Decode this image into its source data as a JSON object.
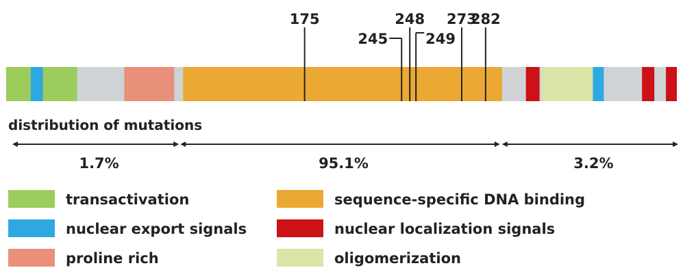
{
  "colors": {
    "background": "#cfd3d6",
    "transactivation": "#9ccc5c",
    "nuclear_export": "#2ea8e0",
    "proline_rich": "#e8907a",
    "dna_binding": "#eba833",
    "nuclear_localization": "#cc1117",
    "oligomerization": "#d9e6a8",
    "ink": "#222222"
  },
  "protein": {
    "domains": [
      {
        "type": "transactivation",
        "start": 0.009,
        "end": 0.045
      },
      {
        "type": "nuclear_export",
        "start": 0.045,
        "end": 0.063
      },
      {
        "type": "transactivation",
        "start": 0.063,
        "end": 0.113
      },
      {
        "type": "proline_rich",
        "start": 0.182,
        "end": 0.255
      },
      {
        "type": "dna_binding",
        "start": 0.268,
        "end": 0.735
      },
      {
        "type": "nuclear_localization",
        "start": 0.77,
        "end": 0.79
      },
      {
        "type": "oligomerization",
        "start": 0.793,
        "end": 0.868
      },
      {
        "type": "nuclear_export",
        "start": 0.868,
        "end": 0.884
      },
      {
        "type": "nuclear_localization",
        "start": 0.94,
        "end": 0.958
      },
      {
        "type": "nuclear_localization",
        "start": 0.975,
        "end": 0.991
      }
    ]
  },
  "mutations": [
    {
      "label": "175",
      "position": 0.446
    },
    {
      "label": "245",
      "position": 0.588
    },
    {
      "label": "248",
      "position": 0.6
    },
    {
      "label": "249",
      "position": 0.609
    },
    {
      "label": "273",
      "position": 0.676
    },
    {
      "label": "282",
      "position": 0.711
    }
  ],
  "distribution": {
    "title": "distribution of mutations",
    "ranges": [
      {
        "label": "1.7%",
        "start": 0.018,
        "end": 0.262,
        "value_percent": 1.7
      },
      {
        "label": "95.1%",
        "start": 0.264,
        "end": 0.732,
        "value_percent": 95.1
      },
      {
        "label": "3.2%",
        "start": 0.735,
        "end": 0.993,
        "value_percent": 3.2
      }
    ]
  },
  "legend": [
    {
      "key": "transactivation",
      "label": "transactivation"
    },
    {
      "key": "dna_binding",
      "label": "sequence-specific DNA binding"
    },
    {
      "key": "nuclear_export",
      "label": "nuclear export signals"
    },
    {
      "key": "nuclear_localization",
      "label": "nuclear localization signals"
    },
    {
      "key": "proline_rich",
      "label": "proline rich"
    },
    {
      "key": "oligomerization",
      "label": "oligomerization"
    }
  ]
}
